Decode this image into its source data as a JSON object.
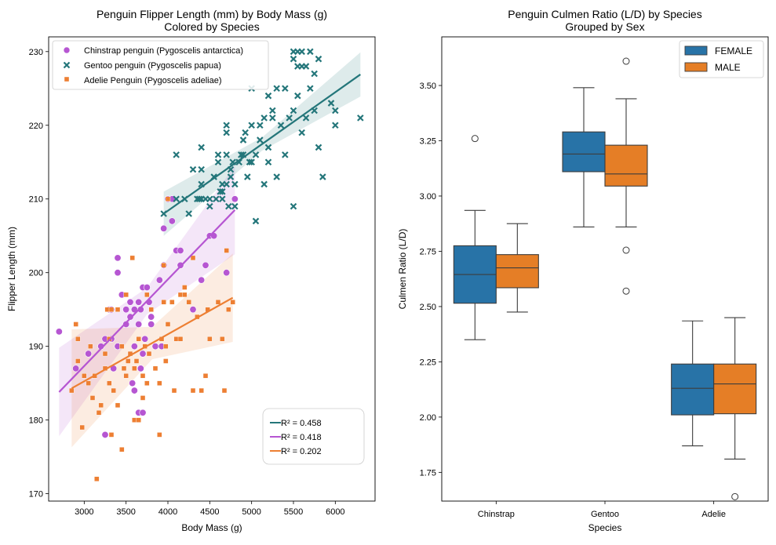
{
  "chart_data": [
    {
      "type": "scatter",
      "title": "Penguin Flipper Length (mm) by Body Mass (g)",
      "subtitle": "Colored by Species",
      "xlabel": "Body Mass (g)",
      "ylabel": "Flipper Length (mm)",
      "xlim": [
        2575,
        6475
      ],
      "ylim": [
        169,
        232
      ],
      "xticks": [
        "3000",
        "3500",
        "4000",
        "4500",
        "5000",
        "5500",
        "6000"
      ],
      "yticks": [
        "170",
        "180",
        "190",
        "200",
        "210",
        "220",
        "230"
      ],
      "legend_placement": "upper-left",
      "series": [
        {
          "name": "Chinstrap penguin (Pygoscelis antarctica)",
          "marker": "circle",
          "color": "#b656d2",
          "points": [
            [
              2700,
              192
            ],
            [
              2900,
              187
            ],
            [
              3050,
              189
            ],
            [
              3200,
              190
            ],
            [
              3250,
              191
            ],
            [
              3300,
              195
            ],
            [
              3325,
              191
            ],
            [
              3350,
              187
            ],
            [
              3400,
              190
            ],
            [
              3400,
              202
            ],
            [
              3400,
              200
            ],
            [
              3450,
              197
            ],
            [
              3500,
              193
            ],
            [
              3500,
              195
            ],
            [
              3550,
              194
            ],
            [
              3600,
              190
            ],
            [
              3600,
              195
            ],
            [
              3650,
              196
            ],
            [
              3650,
              193
            ],
            [
              3650,
              181
            ],
            [
              3675,
              195
            ],
            [
              3700,
              181
            ],
            [
              3700,
              198
            ],
            [
              3700,
              189
            ],
            [
              3725,
              191
            ],
            [
              3750,
              198
            ],
            [
              3800,
              193
            ],
            [
              3800,
              194
            ],
            [
              3850,
              190
            ],
            [
              3900,
              199
            ],
            [
              3950,
              201
            ],
            [
              3950,
              206
            ],
            [
              4000,
              210
            ],
            [
              4050,
              207
            ],
            [
              4100,
              203
            ],
            [
              4150,
              203
            ],
            [
              4300,
              195
            ],
            [
              4400,
              199
            ],
            [
              4450,
              201
            ],
            [
              4500,
              205
            ],
            [
              4550,
              205
            ],
            [
              4700,
              200
            ],
            [
              4800,
              210
            ],
            [
              3325,
              195
            ],
            [
              3550,
              196
            ],
            [
              3675,
              187
            ],
            [
              3775,
              196
            ],
            [
              3925,
              190
            ],
            [
              4050,
              210
            ],
            [
              4150,
              201
            ],
            [
              3575,
              185
            ],
            [
              3600,
              184
            ],
            [
              3250,
              178
            ]
          ],
          "fit": {
            "x": [
              2700,
              4800
            ],
            "y": [
              183.8,
              208.5
            ]
          }
        },
        {
          "name": "Gentoo penguin (Pygoscelis papua)",
          "marker": "x",
          "color": "#24767a",
          "points": [
            [
              3950,
              208
            ],
            [
              4100,
              210
            ],
            [
              4200,
              210
            ],
            [
              4250,
              208
            ],
            [
              4300,
              214
            ],
            [
              4350,
              210
            ],
            [
              4375,
              210
            ],
            [
              4400,
              212
            ],
            [
              4400,
              217
            ],
            [
              4450,
              210
            ],
            [
              4500,
              209
            ],
            [
              4500,
              210
            ],
            [
              4550,
              213
            ],
            [
              4575,
              210
            ],
            [
              4600,
              215
            ],
            [
              4625,
              211
            ],
            [
              4650,
              212
            ],
            [
              4650,
              210
            ],
            [
              4700,
              212
            ],
            [
              4700,
              216
            ],
            [
              4700,
              219
            ],
            [
              4700,
              220
            ],
            [
              4725,
              209
            ],
            [
              4750,
              214
            ],
            [
              4750,
              213
            ],
            [
              4775,
              215
            ],
            [
              4800,
              212
            ],
            [
              4800,
              209
            ],
            [
              4850,
              215
            ],
            [
              4875,
              216
            ],
            [
              4900,
              218
            ],
            [
              4900,
              216
            ],
            [
              4925,
              219
            ],
            [
              4950,
              213
            ],
            [
              4975,
              215
            ],
            [
              5000,
              220
            ],
            [
              5000,
              215
            ],
            [
              5000,
              225
            ],
            [
              5050,
              207
            ],
            [
              5050,
              216
            ],
            [
              5100,
              220
            ],
            [
              5100,
              218
            ],
            [
              5150,
              221
            ],
            [
              5200,
              215
            ],
            [
              5200,
              217
            ],
            [
              5200,
              224
            ],
            [
              5250,
              221
            ],
            [
              5250,
              222
            ],
            [
              5300,
              225
            ],
            [
              5300,
              213
            ],
            [
              5350,
              220
            ],
            [
              5400,
              225
            ],
            [
              5400,
              216
            ],
            [
              5450,
              221
            ],
            [
              5500,
              209
            ],
            [
              5500,
              222
            ],
            [
              5500,
              229
            ],
            [
              5550,
              224
            ],
            [
              5550,
              228
            ],
            [
              5600,
              228
            ],
            [
              5600,
              219
            ],
            [
              5650,
              221
            ],
            [
              5700,
              230
            ],
            [
              5700,
              225
            ],
            [
              5750,
              222
            ],
            [
              5800,
              217
            ],
            [
              5800,
              229
            ],
            [
              5850,
              213
            ],
            [
              5950,
              223
            ],
            [
              6000,
              222
            ],
            [
              6000,
              220
            ],
            [
              6300,
              221
            ],
            [
              4100,
              216
            ],
            [
              4400,
              210
            ],
            [
              4600,
              216
            ],
            [
              4650,
              211
            ],
            [
              5500,
              230
            ],
            [
              5550,
              230
            ],
            [
              5600,
              230
            ],
            [
              5750,
              227
            ],
            [
              5150,
              212
            ],
            [
              4400,
              214
            ],
            [
              5650,
              228
            ]
          ],
          "fit": {
            "x": [
              3950,
              6300
            ],
            "y": [
              208.0,
              226.9
            ]
          }
        },
        {
          "name": "Adelie Penguin (Pygoscelis adeliae)",
          "marker": "square",
          "color": "#ed7f33",
          "points": [
            [
              2850,
              184
            ],
            [
              2900,
              193
            ],
            [
              2925,
              188
            ],
            [
              2975,
              179
            ],
            [
              3000,
              186
            ],
            [
              3050,
              185
            ],
            [
              3075,
              190
            ],
            [
              3100,
              183
            ],
            [
              3150,
              172
            ],
            [
              3175,
              181
            ],
            [
              3200,
              182
            ],
            [
              3250,
              187
            ],
            [
              3275,
              195
            ],
            [
              3300,
              185
            ],
            [
              3325,
              195
            ],
            [
              3350,
              184
            ],
            [
              3400,
              182
            ],
            [
              3400,
              195
            ],
            [
              3450,
              176
            ],
            [
              3450,
              190
            ],
            [
              3475,
              187
            ],
            [
              3500,
              186
            ],
            [
              3525,
              188
            ],
            [
              3550,
              189
            ],
            [
              3575,
              202
            ],
            [
              3600,
              180
            ],
            [
              3625,
              188
            ],
            [
              3650,
              180
            ],
            [
              3700,
              186
            ],
            [
              3700,
              183
            ],
            [
              3725,
              190
            ],
            [
              3750,
              197
            ],
            [
              3775,
              189
            ],
            [
              3800,
              195
            ],
            [
              3850,
              187
            ],
            [
              3900,
              185
            ],
            [
              3900,
              178
            ],
            [
              3925,
              191
            ],
            [
              3950,
              196
            ],
            [
              3975,
              188
            ],
            [
              4000,
              193
            ],
            [
              4050,
              196
            ],
            [
              4075,
              184
            ],
            [
              4100,
              191
            ],
            [
              4150,
              197
            ],
            [
              4150,
              191
            ],
            [
              4200,
              197
            ],
            [
              4250,
              196
            ],
            [
              4300,
              184
            ],
            [
              4350,
              194
            ],
            [
              4400,
              184
            ],
            [
              4450,
              186
            ],
            [
              4475,
              195
            ],
            [
              4500,
              191
            ],
            [
              4600,
              196
            ],
            [
              4650,
              191
            ],
            [
              4675,
              184
            ],
            [
              4700,
              203
            ],
            [
              4725,
              195
            ],
            [
              4775,
              196
            ],
            [
              3300,
              191
            ],
            [
              3950,
              201
            ],
            [
              3500,
              197
            ],
            [
              3600,
              187
            ],
            [
              3750,
              185
            ],
            [
              3975,
              190
            ],
            [
              4200,
              198
            ],
            [
              3250,
              189
            ],
            [
              3125,
              186
            ],
            [
              2925,
              191
            ],
            [
              3325,
              178
            ],
            [
              4000,
              210
            ],
            [
              4300,
              202
            ],
            [
              3650,
              191
            ]
          ],
          "fit": {
            "x": [
              2850,
              4775
            ],
            "y": [
              184.3,
              196.6
            ]
          }
        }
      ],
      "fit_legend": [
        "R² = 0.458",
        "R² = 0.418",
        "R² = 0.202"
      ]
    },
    {
      "type": "box",
      "title": "Penguin Culmen Ratio (L/D) by Species",
      "subtitle": "Grouped by Sex",
      "xlabel": "Species",
      "ylabel": "Culmen Ratio (L/D)",
      "ylim": [
        1.62,
        3.72
      ],
      "yticks": [
        "1.75",
        "2.00",
        "2.25",
        "2.50",
        "2.75",
        "3.00",
        "3.25",
        "3.50"
      ],
      "categories": [
        "Chinstrap",
        "Gentoo",
        "Adelie"
      ],
      "legend_placement": "upper-right",
      "groups": [
        {
          "name": "FEMALE",
          "color": "#2873a7",
          "boxes": [
            {
              "min": 2.35,
              "q1": 2.515,
              "median": 2.645,
              "q3": 2.775,
              "max": 2.935,
              "outliers": [
                3.26
              ]
            },
            {
              "min": 2.86,
              "q1": 3.11,
              "median": 3.19,
              "q3": 3.29,
              "max": 3.49,
              "outliers": []
            },
            {
              "min": 1.87,
              "q1": 2.01,
              "median": 2.13,
              "q3": 2.24,
              "max": 2.435,
              "outliers": []
            }
          ]
        },
        {
          "name": "MALE",
          "color": "#e57e26",
          "boxes": [
            {
              "min": 2.475,
              "q1": 2.585,
              "median": 2.675,
              "q3": 2.735,
              "max": 2.875,
              "outliers": []
            },
            {
              "min": 2.86,
              "q1": 3.045,
              "median": 3.1,
              "q3": 3.23,
              "max": 3.44,
              "outliers": [
                3.61,
                2.755,
                2.57
              ]
            },
            {
              "min": 1.81,
              "q1": 2.015,
              "median": 2.15,
              "q3": 2.24,
              "max": 2.45,
              "outliers": [
                1.64
              ]
            }
          ]
        }
      ]
    }
  ]
}
